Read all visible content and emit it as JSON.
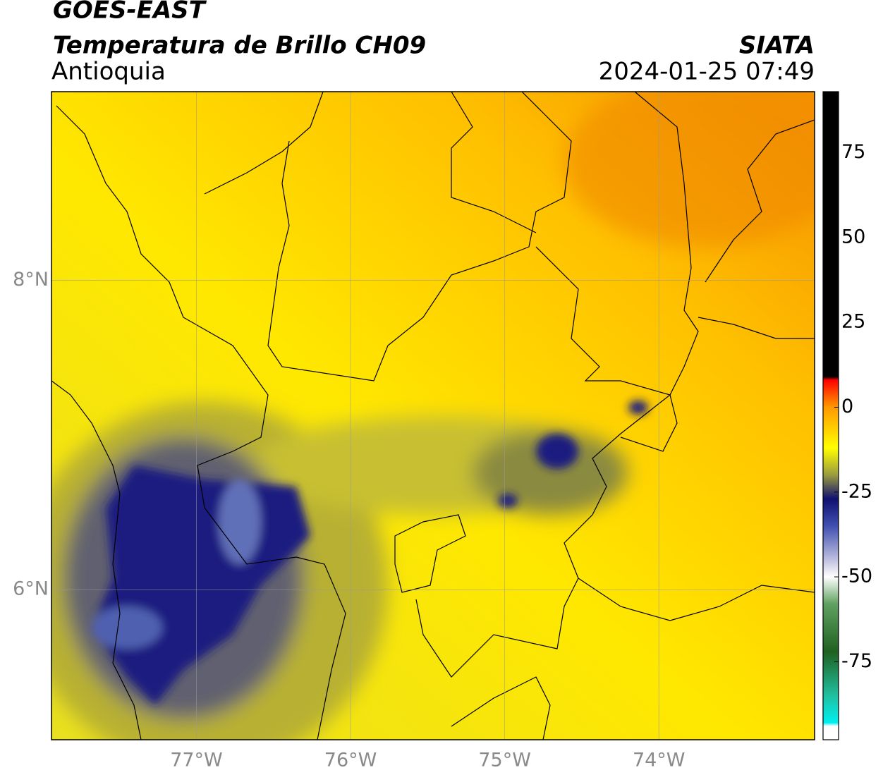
{
  "header": {
    "title": "GOES-EAST",
    "subtitle": "Temperatura de Brillo CH09",
    "region": "Antioquia",
    "source": "SIATA",
    "datetime": "2024-01-25 07:49"
  },
  "map": {
    "xlim": [
      -77.94,
      -72.99
    ],
    "ylim": [
      5.03,
      9.22
    ],
    "xticks": [
      {
        "value": -77,
        "label": "77°W"
      },
      {
        "value": -76,
        "label": "76°W"
      },
      {
        "value": -75,
        "label": "75°W"
      },
      {
        "value": -74,
        "label": "74°W"
      }
    ],
    "yticks": [
      {
        "value": 8,
        "label": "8°N"
      },
      {
        "value": 6,
        "label": "6°N"
      }
    ],
    "grid": true
  },
  "colorbar": {
    "lim": [
      -98,
      93
    ],
    "ticks": [
      75,
      50,
      25,
      0,
      -25,
      -50,
      -75
    ],
    "colormap": [
      {
        "value": 93,
        "color": "#000000"
      },
      {
        "value": 9,
        "color": "#000000"
      },
      {
        "value": 8,
        "color": "#ff0000"
      },
      {
        "value": 0,
        "color": "#ff9900"
      },
      {
        "value": -12,
        "color": "#ffff00"
      },
      {
        "value": -20,
        "color": "#9a9a40"
      },
      {
        "value": -27,
        "color": "#101070"
      },
      {
        "value": -35,
        "color": "#4050b0"
      },
      {
        "value": -45,
        "color": "#c0c0e0"
      },
      {
        "value": -50,
        "color": "#ffffff"
      },
      {
        "value": -58,
        "color": "#60a060"
      },
      {
        "value": -72,
        "color": "#206020"
      },
      {
        "value": -85,
        "color": "#20c0a0"
      },
      {
        "value": -93,
        "color": "#00f0f0"
      },
      {
        "value": -94,
        "color": "#ffffff"
      },
      {
        "value": -98,
        "color": "#ffffff"
      }
    ]
  }
}
